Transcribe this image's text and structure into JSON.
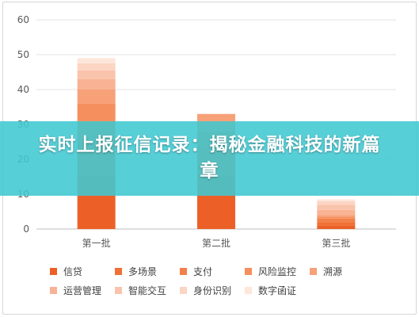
{
  "banner": {
    "title": "实时上报征信记录：揭秘金融科技的新篇章"
  },
  "chart_data": {
    "type": "bar",
    "stacked": true,
    "categories": [
      "第一批",
      "第二批",
      "第三批"
    ],
    "ylim": [
      0,
      60
    ],
    "yticks": [
      0,
      10,
      20,
      30,
      40,
      50,
      60
    ],
    "grid": true,
    "legend_position": "bottom",
    "series": [
      {
        "name": "信贷",
        "color": "#ec6028",
        "values": [
          15,
          15,
          1
        ]
      },
      {
        "name": "多场景",
        "color": "#f07035",
        "values": [
          10,
          9,
          1
        ]
      },
      {
        "name": "支付",
        "color": "#f3804a",
        "values": [
          6,
          4,
          1
        ]
      },
      {
        "name": "风险监控",
        "color": "#f5905e",
        "values": [
          5,
          3,
          0.5
        ]
      },
      {
        "name": "溯源",
        "color": "#f7a179",
        "values": [
          4,
          2,
          0.5
        ]
      },
      {
        "name": "运营管理",
        "color": "#f9b294",
        "values": [
          3,
          0,
          1.5
        ]
      },
      {
        "name": "智能交互",
        "color": "#fac3ab",
        "values": [
          2.5,
          0,
          1.5
        ]
      },
      {
        "name": "身份识别",
        "color": "#fcd5c3",
        "values": [
          2,
          0,
          1
        ]
      },
      {
        "name": "数字函证",
        "color": "#fde6da",
        "values": [
          1.5,
          0,
          0.5
        ]
      }
    ]
  }
}
